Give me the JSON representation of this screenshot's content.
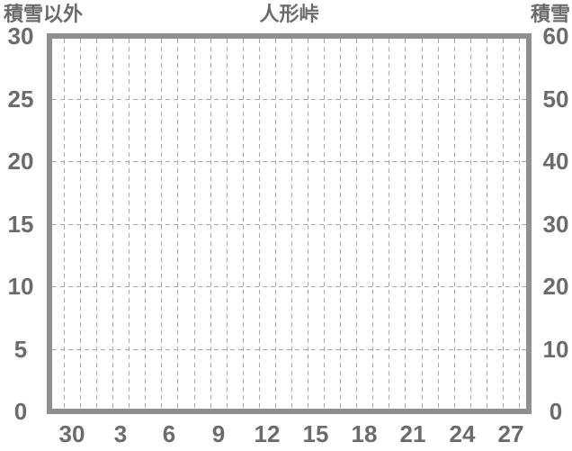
{
  "chart_data": {
    "type": "line",
    "title": "人形峠",
    "plot_empty": true,
    "series": [],
    "y_left_axis": {
      "label": "積雪以外",
      "ticks": [
        "30",
        "25",
        "20",
        "15",
        "10",
        "5",
        "0"
      ],
      "min": 0,
      "max": 30
    },
    "y_right_axis": {
      "label": "積雪",
      "ticks": [
        "60",
        "50",
        "40",
        "30",
        "20",
        "10",
        "0"
      ],
      "min": 0,
      "max": 60
    },
    "x_axis": {
      "tick_labels": [
        "30",
        "3",
        "6",
        "9",
        "12",
        "15",
        "18",
        "21",
        "24",
        "27"
      ],
      "label_every_n_days": 3,
      "day_gridline_count": 29
    },
    "grid": {
      "style": "dashed",
      "horizontal_lines_at_left_values": [
        25,
        20,
        15,
        10,
        5
      ]
    },
    "legend": "none"
  },
  "colors": {
    "background": "#ffffff",
    "frame_border": "#8f8f8f",
    "gridline": "#a8a8a8",
    "text": "#6b6b6b"
  }
}
